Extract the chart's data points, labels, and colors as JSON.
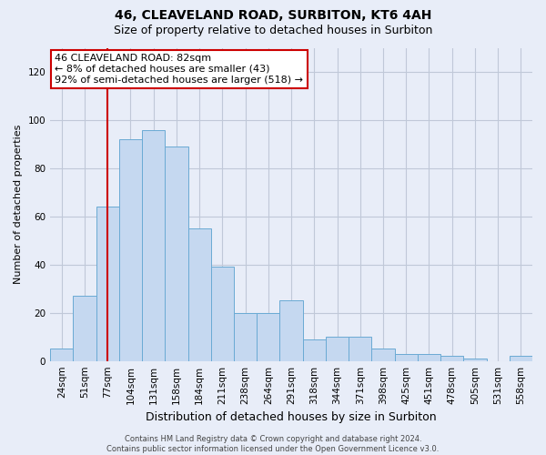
{
  "title": "46, CLEAVELAND ROAD, SURBITON, KT6 4AH",
  "subtitle": "Size of property relative to detached houses in Surbiton",
  "xlabel": "Distribution of detached houses by size in Surbiton",
  "ylabel": "Number of detached properties",
  "categories": [
    "24sqm",
    "51sqm",
    "77sqm",
    "104sqm",
    "131sqm",
    "158sqm",
    "184sqm",
    "211sqm",
    "238sqm",
    "264sqm",
    "291sqm",
    "318sqm",
    "344sqm",
    "371sqm",
    "398sqm",
    "425sqm",
    "451sqm",
    "478sqm",
    "505sqm",
    "531sqm",
    "558sqm"
  ],
  "values": [
    5,
    27,
    64,
    92,
    96,
    89,
    55,
    39,
    20,
    20,
    25,
    9,
    10,
    10,
    5,
    3,
    3,
    2,
    1,
    0,
    2
  ],
  "bar_color": "#c5d8f0",
  "bar_edge_color": "#6aaad4",
  "highlight_index": 2,
  "highlight_line_color": "#cc0000",
  "annotation_text": "46 CLEAVELAND ROAD: 82sqm\n← 8% of detached houses are smaller (43)\n92% of semi-detached houses are larger (518) →",
  "annotation_box_color": "#ffffff",
  "annotation_box_edge_color": "#cc0000",
  "ylim": [
    0,
    130
  ],
  "yticks": [
    0,
    20,
    40,
    60,
    80,
    100,
    120
  ],
  "footer": "Contains HM Land Registry data © Crown copyright and database right 2024.\nContains public sector information licensed under the Open Government Licence v3.0.",
  "background_color": "#e8edf8",
  "plot_background_color": "#e8edf8",
  "grid_color": "#c0c8d8",
  "title_fontsize": 10,
  "subtitle_fontsize": 9,
  "xlabel_fontsize": 9,
  "ylabel_fontsize": 8,
  "tick_fontsize": 7.5,
  "annotation_fontsize": 8,
  "footer_fontsize": 6
}
